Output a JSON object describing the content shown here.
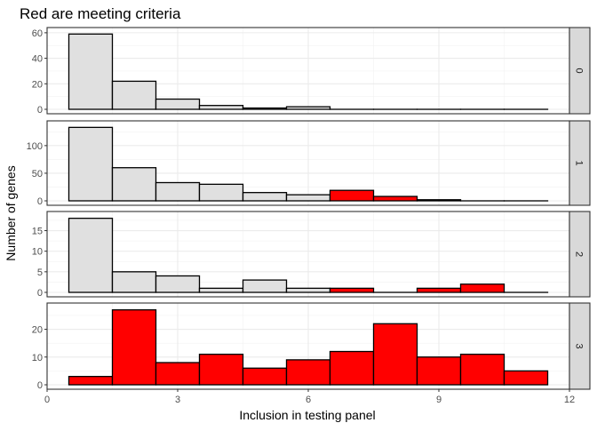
{
  "chart_data": {
    "type": "bar",
    "title": "Red are meeting criteria",
    "xlabel": "Inclusion in testing panel",
    "ylabel": "Number of genes",
    "xlim": [
      0,
      12
    ],
    "xticks": [
      0,
      3,
      6,
      9,
      12
    ],
    "bin_width": 1,
    "grid": true,
    "colors": {
      "meets_criteria": "#ff0000",
      "not_meeting": "#e0e0e0",
      "strip": "#d9d9d9",
      "border": "#333333"
    },
    "panels": [
      {
        "facet": "0",
        "ylim": [
          0,
          62
        ],
        "yticks": [
          0,
          20,
          40,
          60
        ],
        "bins": [
          {
            "x": 1,
            "count": 59,
            "meets": false
          },
          {
            "x": 2,
            "count": 22,
            "meets": false
          },
          {
            "x": 3,
            "count": 8,
            "meets": false
          },
          {
            "x": 4,
            "count": 3,
            "meets": false
          },
          {
            "x": 5,
            "count": 1,
            "meets": false
          },
          {
            "x": 6,
            "count": 2,
            "meets": false
          },
          {
            "x": 7,
            "count": 0,
            "meets": false
          },
          {
            "x": 8,
            "count": 0,
            "meets": false
          },
          {
            "x": 9,
            "count": 0,
            "meets": false
          },
          {
            "x": 10,
            "count": 0,
            "meets": false
          },
          {
            "x": 11,
            "count": 0,
            "meets": false
          }
        ]
      },
      {
        "facet": "1",
        "ylim": [
          0,
          140
        ],
        "yticks": [
          0,
          50,
          100
        ],
        "bins": [
          {
            "x": 1,
            "count": 133,
            "meets": false
          },
          {
            "x": 2,
            "count": 60,
            "meets": false
          },
          {
            "x": 3,
            "count": 33,
            "meets": false
          },
          {
            "x": 4,
            "count": 30,
            "meets": false
          },
          {
            "x": 5,
            "count": 15,
            "meets": false
          },
          {
            "x": 6,
            "count": 11,
            "meets": false
          },
          {
            "x": 7,
            "count": 19,
            "meets": true
          },
          {
            "x": 8,
            "count": 8,
            "meets": true
          },
          {
            "x": 9,
            "count": 2,
            "meets": true
          },
          {
            "x": 10,
            "count": 0,
            "meets": false
          },
          {
            "x": 11,
            "count": 0,
            "meets": false
          }
        ]
      },
      {
        "facet": "2",
        "ylim": [
          0,
          19
        ],
        "yticks": [
          0,
          5,
          10,
          15
        ],
        "bins": [
          {
            "x": 1,
            "count": 18,
            "meets": false
          },
          {
            "x": 2,
            "count": 5,
            "meets": false
          },
          {
            "x": 3,
            "count": 4,
            "meets": false
          },
          {
            "x": 4,
            "count": 1,
            "meets": false
          },
          {
            "x": 5,
            "count": 3,
            "meets": false
          },
          {
            "x": 6,
            "count": 1,
            "meets": false
          },
          {
            "x": 7,
            "count": 1,
            "meets": true
          },
          {
            "x": 8,
            "count": 0,
            "meets": false
          },
          {
            "x": 9,
            "count": 1,
            "meets": true
          },
          {
            "x": 10,
            "count": 2,
            "meets": true
          },
          {
            "x": 11,
            "count": 0,
            "meets": false
          }
        ]
      },
      {
        "facet": "3",
        "ylim": [
          0,
          28.5
        ],
        "yticks": [
          0,
          10,
          20
        ],
        "bins": [
          {
            "x": 1,
            "count": 3,
            "meets": true
          },
          {
            "x": 2,
            "count": 27,
            "meets": true
          },
          {
            "x": 3,
            "count": 8,
            "meets": true
          },
          {
            "x": 4,
            "count": 11,
            "meets": true
          },
          {
            "x": 5,
            "count": 6,
            "meets": true
          },
          {
            "x": 6,
            "count": 9,
            "meets": true
          },
          {
            "x": 7,
            "count": 12,
            "meets": true
          },
          {
            "x": 8,
            "count": 22,
            "meets": true
          },
          {
            "x": 9,
            "count": 10,
            "meets": true
          },
          {
            "x": 10,
            "count": 11,
            "meets": true
          },
          {
            "x": 11,
            "count": 5,
            "meets": true
          }
        ]
      }
    ]
  }
}
